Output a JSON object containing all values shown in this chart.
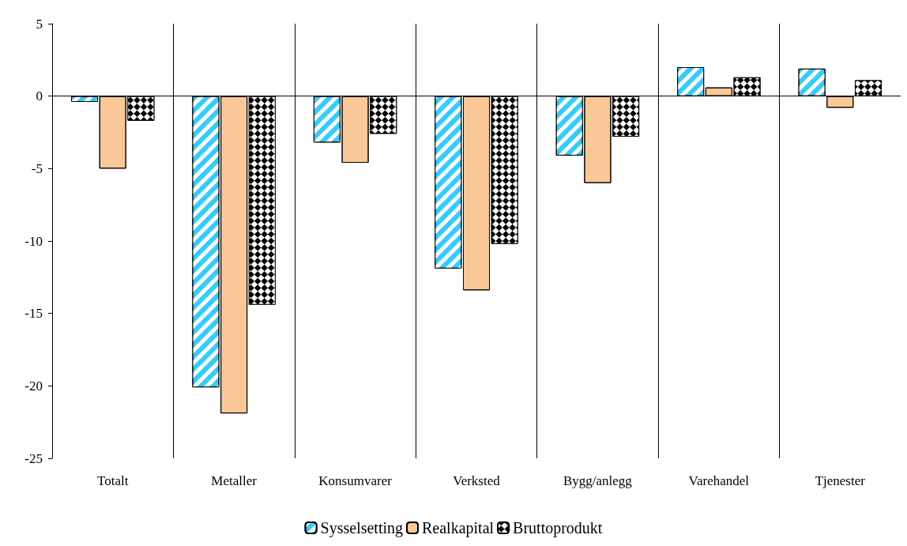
{
  "chart_data": {
    "type": "bar",
    "categories": [
      "Totalt",
      "Metaller",
      "Konsumvarer",
      "Verksted",
      "Bygg/anlegg",
      "Varehandel",
      "Tjenester"
    ],
    "series": [
      {
        "name": "Sysselsetting",
        "color": "#33ccff",
        "values": [
          -0.4,
          -20.1,
          -3.2,
          -11.9,
          -4.1,
          2.0,
          1.9
        ]
      },
      {
        "name": "Realkapital",
        "color": "#f9c896",
        "values": [
          -5.0,
          -21.9,
          -4.6,
          -13.4,
          -6.0,
          0.6,
          -0.8
        ]
      },
      {
        "name": "Bruttoprodukt",
        "color": "#000000",
        "values": [
          -1.7,
          -14.4,
          -2.6,
          -10.2,
          -2.8,
          1.3,
          1.1
        ]
      }
    ],
    "ylim": [
      -25,
      5
    ],
    "yticks": [
      -25,
      -20,
      -15,
      -10,
      -5,
      0,
      5
    ],
    "grid": "x",
    "legend": "bottom",
    "ref_lines": [
      {
        "axis": "y",
        "value": 0
      }
    ]
  }
}
